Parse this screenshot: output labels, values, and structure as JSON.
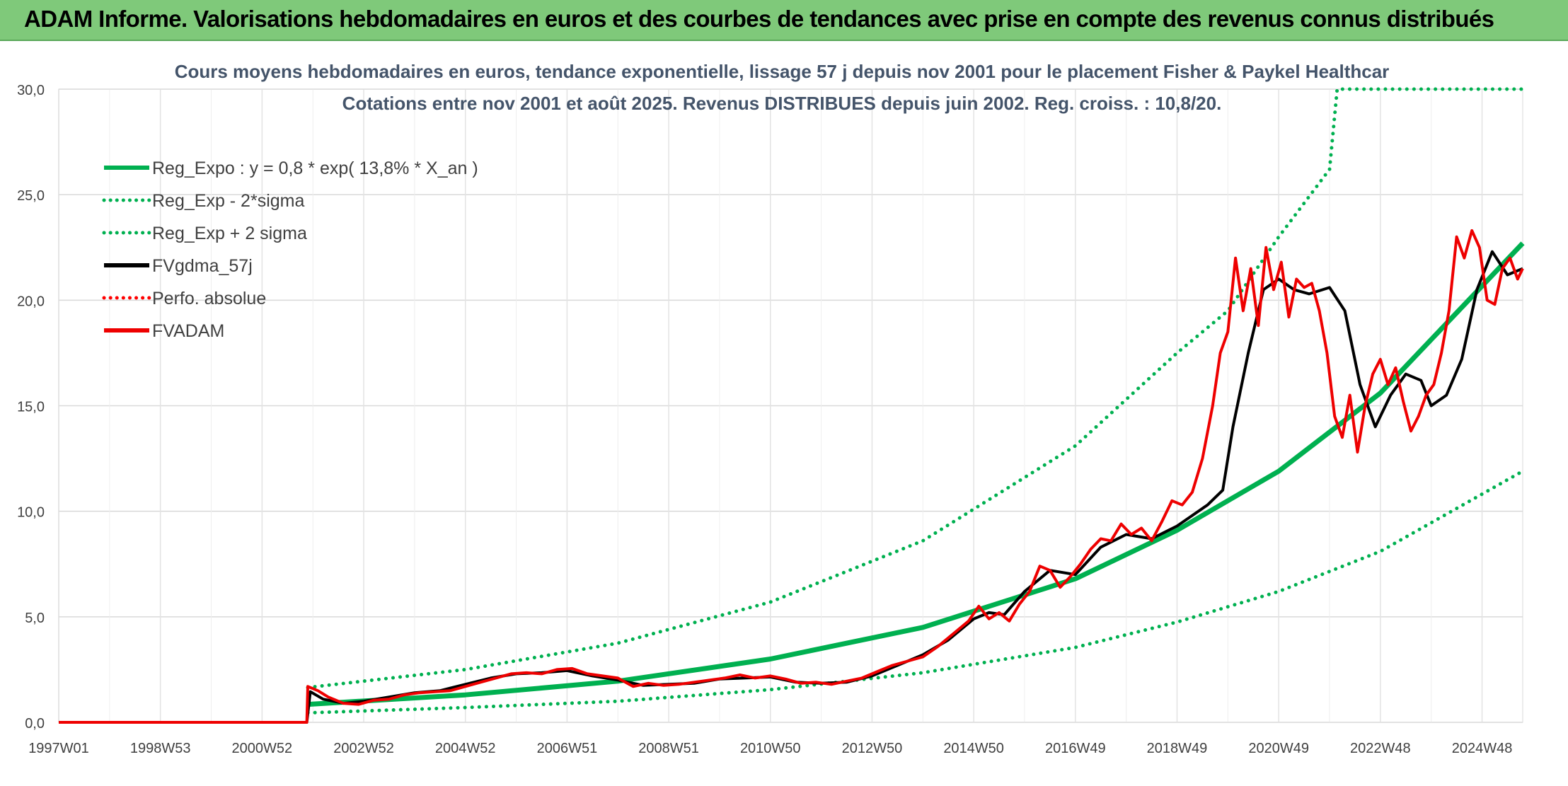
{
  "banner": {
    "title": "ADAM Informe. Valorisations hebdomadaires en euros et des courbes de tendances avec prise en compte des revenus connus distribués"
  },
  "chart_data": {
    "type": "line",
    "title": "Cours moyens hebdomadaires en euros, tendance exponentielle, lissage 57 j depuis nov 2001 pour le placement Fisher & Paykel Healthcar",
    "subtitle": "Cotations entre nov 2001 et août 2025. Revenus DISTRIBUES depuis juin 2002. Reg. croiss. : 10,8/20.",
    "ylim": [
      0,
      30
    ],
    "y_ticks": [
      "0,0",
      "5,0",
      "10,0",
      "15,0",
      "20,0",
      "25,0",
      "30,0"
    ],
    "y_tick_values": [
      0,
      5,
      10,
      15,
      20,
      25,
      30
    ],
    "x_range": [
      1997.0,
      2025.8
    ],
    "x_ticks": [
      {
        "label": "1997W01",
        "x": 1997.0
      },
      {
        "label": "1998W53",
        "x": 1999.0
      },
      {
        "label": "2000W52",
        "x": 2001.0
      },
      {
        "label": "2002W52",
        "x": 2003.0
      },
      {
        "label": "2004W52",
        "x": 2005.0
      },
      {
        "label": "2006W51",
        "x": 2007.0
      },
      {
        "label": "2008W51",
        "x": 2009.0
      },
      {
        "label": "2010W50",
        "x": 2011.0
      },
      {
        "label": "2012W50",
        "x": 2013.0
      },
      {
        "label": "2014W50",
        "x": 2015.0
      },
      {
        "label": "2016W49",
        "x": 2017.0
      },
      {
        "label": "2018W49",
        "x": 2019.0
      },
      {
        "label": "2020W49",
        "x": 2021.0
      },
      {
        "label": "2022W48",
        "x": 2023.0
      },
      {
        "label": "2024W48",
        "x": 2025.0
      }
    ],
    "grid": true,
    "legend_position": "top-left",
    "series": [
      {
        "name": "Reg_Expo : y = 0,8 * exp( 13,8% *  X_an )",
        "color": "#00b050",
        "style": "solid",
        "x": [
          2001.9,
          2005,
          2008,
          2011,
          2014,
          2017,
          2019,
          2021,
          2023,
          2025.8
        ],
        "y": [
          0.85,
          1.3,
          1.95,
          3.0,
          4.5,
          6.8,
          9.1,
          11.9,
          15.6,
          22.7
        ]
      },
      {
        "name": "Reg_Exp - 2*sigma",
        "color": "#00b050",
        "style": "dotted",
        "x": [
          2001.9,
          2005,
          2008,
          2011,
          2014,
          2017,
          2019,
          2021,
          2023,
          2025.8
        ],
        "y": [
          0.45,
          0.7,
          1.0,
          1.55,
          2.35,
          3.55,
          4.75,
          6.2,
          8.1,
          11.9
        ]
      },
      {
        "name": "Reg_Exp + 2 sigma",
        "color": "#00b050",
        "style": "dotted",
        "x": [
          2001.9,
          2005,
          2008,
          2011,
          2014,
          2017,
          2019,
          2020,
          2021,
          2022,
          2022.15,
          2025.8
        ],
        "y": [
          1.65,
          2.5,
          3.75,
          5.7,
          8.6,
          13.1,
          17.5,
          19.5,
          23.0,
          26.2,
          30.0,
          30.0
        ]
      },
      {
        "name": "FVgdma_57j",
        "color": "#000000",
        "style": "solid",
        "x": [
          1997.0,
          2001.88,
          2001.95,
          2002.2,
          2002.6,
          2003.0,
          2003.5,
          2004.0,
          2004.5,
          2005.0,
          2005.5,
          2006.0,
          2006.5,
          2007.0,
          2007.5,
          2008.0,
          2008.5,
          2009.0,
          2009.5,
          2010.0,
          2010.5,
          2011.0,
          2011.5,
          2012.0,
          2012.5,
          2013.0,
          2013.5,
          2014.0,
          2014.5,
          2015.0,
          2015.3,
          2015.6,
          2016.0,
          2016.5,
          2017.0,
          2017.5,
          2018.0,
          2018.5,
          2019.0,
          2019.3,
          2019.6,
          2019.9,
          2020.1,
          2020.4,
          2020.7,
          2021.0,
          2021.3,
          2021.6,
          2022.0,
          2022.3,
          2022.6,
          2022.9,
          2023.2,
          2023.5,
          2023.8,
          2024.0,
          2024.3,
          2024.6,
          2024.9,
          2025.2,
          2025.5,
          2025.8
        ],
        "y": [
          0,
          0,
          1.45,
          1.1,
          0.9,
          1.0,
          1.2,
          1.4,
          1.5,
          1.8,
          2.1,
          2.3,
          2.35,
          2.45,
          2.2,
          2.0,
          1.75,
          1.8,
          1.85,
          2.05,
          2.1,
          2.15,
          1.9,
          1.85,
          1.9,
          2.2,
          2.7,
          3.2,
          3.9,
          4.9,
          5.2,
          5.1,
          6.2,
          7.2,
          7.0,
          8.3,
          8.9,
          8.7,
          9.3,
          9.8,
          10.3,
          11.0,
          14.0,
          17.5,
          20.5,
          21.0,
          20.5,
          20.3,
          20.6,
          19.5,
          16.0,
          14.0,
          15.5,
          16.5,
          16.2,
          15.0,
          15.5,
          17.2,
          20.5,
          22.3,
          21.2,
          21.5
        ]
      },
      {
        "name": "Perfo. absolue",
        "color": "#ff0000",
        "style": "dotted",
        "x": [],
        "y": []
      },
      {
        "name": "FVADAM",
        "color": "#ee0000",
        "style": "solid",
        "x": [
          1997.0,
          2001.88,
          2001.9,
          2002.1,
          2002.3,
          2002.6,
          2002.9,
          2003.2,
          2003.5,
          2003.8,
          2004.1,
          2004.4,
          2004.7,
          2005.0,
          2005.3,
          2005.6,
          2005.9,
          2006.2,
          2006.5,
          2006.8,
          2007.1,
          2007.4,
          2007.7,
          2008.0,
          2008.3,
          2008.6,
          2008.9,
          2009.2,
          2009.5,
          2009.8,
          2010.1,
          2010.4,
          2010.7,
          2011.0,
          2011.3,
          2011.6,
          2011.9,
          2012.2,
          2012.5,
          2012.8,
          2013.1,
          2013.4,
          2013.7,
          2014.0,
          2014.3,
          2014.6,
          2014.9,
          2015.1,
          2015.3,
          2015.5,
          2015.7,
          2015.9,
          2016.1,
          2016.3,
          2016.5,
          2016.7,
          2016.9,
          2017.1,
          2017.3,
          2017.5,
          2017.7,
          2017.9,
          2018.1,
          2018.3,
          2018.5,
          2018.7,
          2018.9,
          2019.1,
          2019.3,
          2019.5,
          2019.7,
          2019.85,
          2020.0,
          2020.15,
          2020.3,
          2020.45,
          2020.6,
          2020.75,
          2020.9,
          2021.05,
          2021.2,
          2021.35,
          2021.5,
          2021.65,
          2021.8,
          2021.95,
          2022.1,
          2022.25,
          2022.4,
          2022.55,
          2022.7,
          2022.85,
          2023.0,
          2023.15,
          2023.3,
          2023.45,
          2023.6,
          2023.75,
          2023.9,
          2024.05,
          2024.2,
          2024.35,
          2024.5,
          2024.65,
          2024.8,
          2024.95,
          2025.1,
          2025.25,
          2025.4,
          2025.55,
          2025.7,
          2025.8
        ],
        "y": [
          0,
          0,
          1.7,
          1.5,
          1.2,
          0.9,
          0.85,
          1.05,
          1.1,
          1.3,
          1.4,
          1.45,
          1.5,
          1.7,
          1.9,
          2.1,
          2.3,
          2.35,
          2.3,
          2.5,
          2.55,
          2.3,
          2.2,
          2.1,
          1.7,
          1.85,
          1.75,
          1.8,
          1.9,
          2.0,
          2.1,
          2.25,
          2.1,
          2.2,
          2.05,
          1.85,
          1.9,
          1.8,
          1.95,
          2.1,
          2.4,
          2.7,
          2.9,
          3.1,
          3.6,
          4.2,
          4.8,
          5.5,
          4.9,
          5.2,
          4.8,
          5.6,
          6.2,
          7.4,
          7.2,
          6.4,
          6.9,
          7.5,
          8.2,
          8.7,
          8.6,
          9.4,
          8.9,
          9.2,
          8.6,
          9.5,
          10.5,
          10.3,
          10.9,
          12.5,
          15.0,
          17.5,
          18.5,
          22.0,
          19.5,
          21.5,
          18.8,
          22.5,
          20.5,
          21.8,
          19.2,
          21.0,
          20.6,
          20.8,
          19.5,
          17.5,
          14.5,
          13.5,
          15.5,
          12.8,
          15.0,
          16.5,
          17.2,
          16.0,
          16.8,
          15.2,
          13.8,
          14.5,
          15.5,
          16.0,
          17.5,
          19.5,
          23.0,
          22.0,
          23.3,
          22.5,
          20.0,
          19.8,
          21.5,
          22.0,
          21.0,
          21.5
        ]
      }
    ]
  }
}
